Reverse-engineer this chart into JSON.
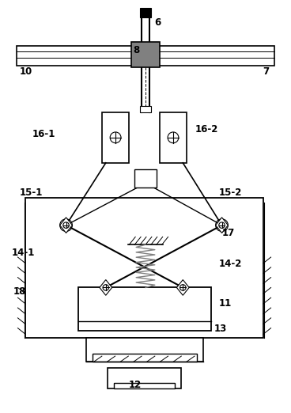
{
  "fig_width": 3.68,
  "fig_height": 5.22,
  "dpi": 100,
  "bg_color": "#ffffff",
  "line_color": "#000000",
  "gray_fill": "#808080",
  "label_fontsize": 8.5
}
